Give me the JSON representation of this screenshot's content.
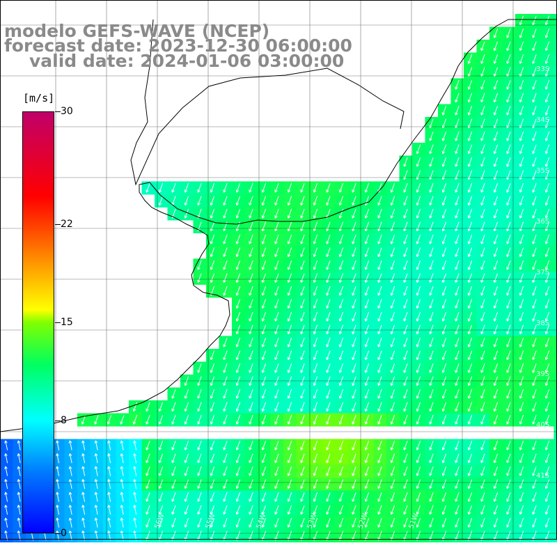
{
  "title": {
    "model": "modelo GEFS-WAVE (NCEP)",
    "forecast": "forecast date: 2023-12-30 06:00:00",
    "valid": "valid date: 2024-01-06 03:00:00"
  },
  "colorbar": {
    "unit": "[m/s]",
    "min": 0,
    "max": 30,
    "ticks": [
      {
        "value": 30,
        "label": "30"
      },
      {
        "value": 22,
        "label": "22"
      },
      {
        "value": 15,
        "label": "15"
      },
      {
        "value": 8,
        "label": "8"
      },
      {
        "value": 0,
        "label": "0"
      }
    ],
    "colors": [
      "#0000ff",
      "#00ffff",
      "#00ff60",
      "#ffff00",
      "#ff0000",
      "#c0006a"
    ]
  },
  "map": {
    "variable": "wind speed and direction",
    "land_color": "#ffffff",
    "coast_color": "#000000",
    "grid_color": "#000000",
    "arrow_color": "#ffffff",
    "lon_labels": [
      "56W",
      "55W",
      "54W",
      "53W",
      "52W",
      "51W"
    ],
    "lat_labels": [
      "33S",
      "34S",
      "35S",
      "36S",
      "37S",
      "38S",
      "39S",
      "40S",
      "41S"
    ]
  }
}
